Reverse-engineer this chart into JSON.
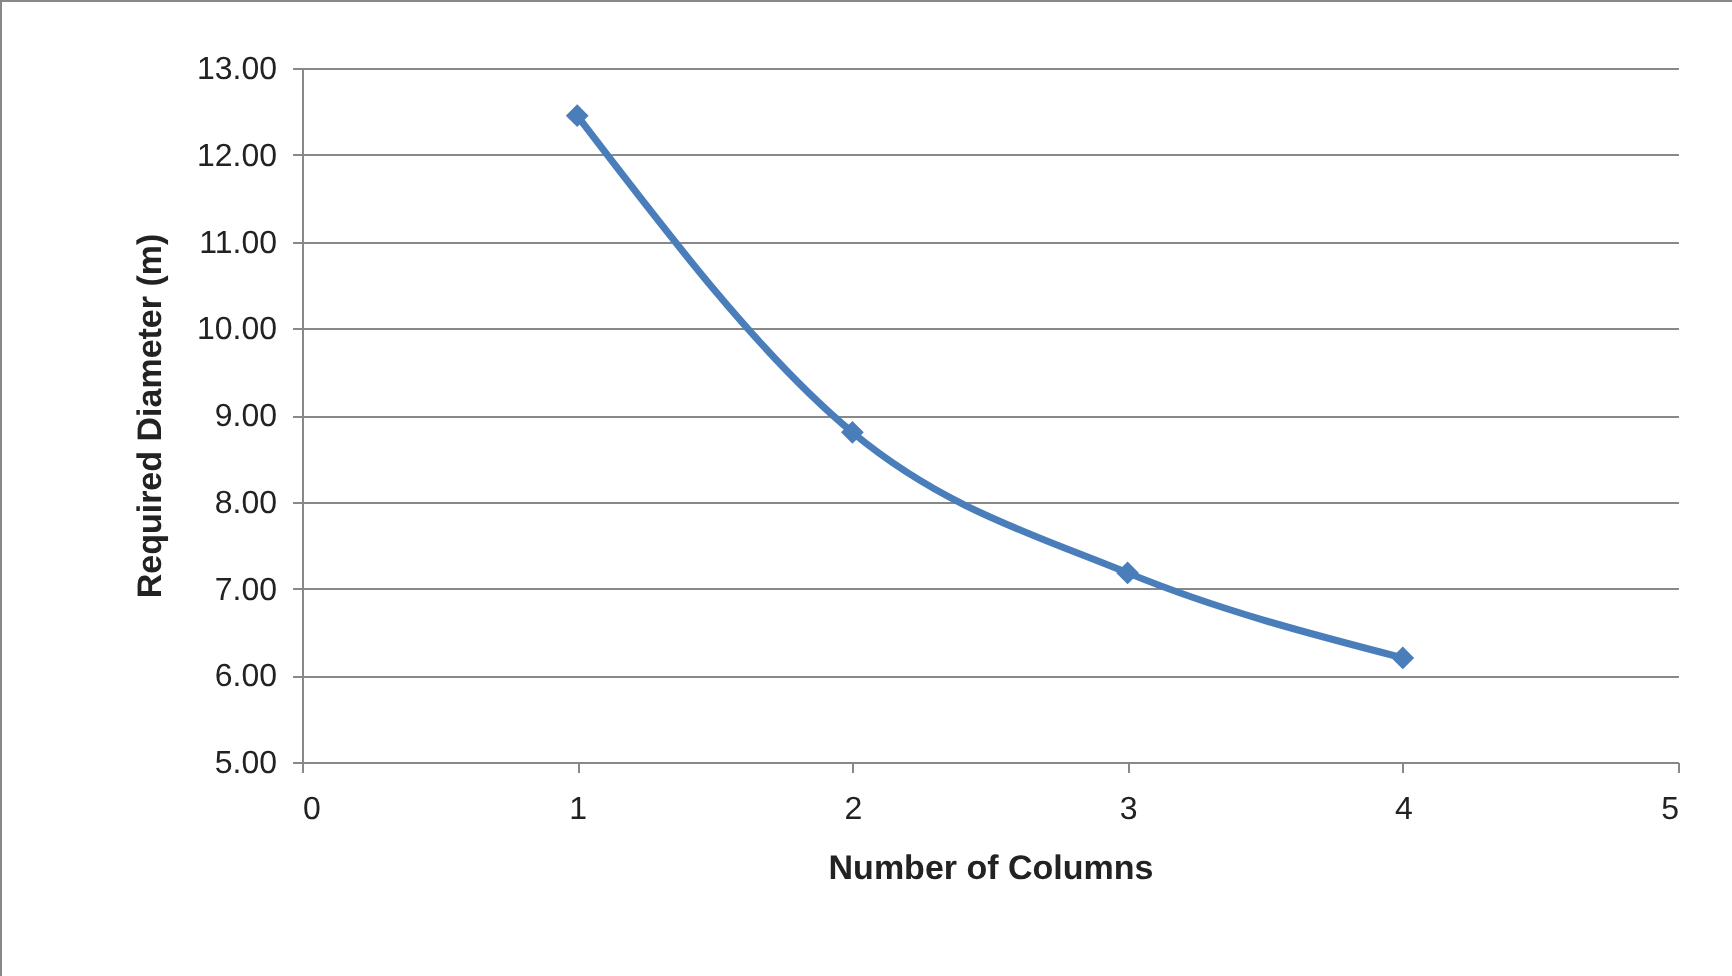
{
  "chart_data": {
    "type": "line",
    "xlabel": "Number of Columns",
    "ylabel": "Required Diameter (m)",
    "x": [
      1,
      2,
      3,
      4
    ],
    "series": [
      {
        "color": "#4a7ebb",
        "values": [
          12.45,
          8.8,
          7.18,
          6.2
        ]
      }
    ],
    "xlim": [
      0,
      5
    ],
    "xticks": [
      0,
      1,
      2,
      3,
      4,
      5
    ],
    "ylim": [
      5,
      13
    ],
    "yticks": [
      {
        "value": 5,
        "label": "5.00"
      },
      {
        "value": 6,
        "label": "6.00"
      },
      {
        "value": 7,
        "label": "7.00"
      },
      {
        "value": 8,
        "label": "8.00"
      },
      {
        "value": 9,
        "label": "9.00"
      },
      {
        "value": 10,
        "label": "10.00"
      },
      {
        "value": 11,
        "label": "11.00"
      },
      {
        "value": 12,
        "label": "12.00"
      },
      {
        "value": 13,
        "label": "13.00"
      }
    ],
    "grid": "y",
    "marker": "diamond",
    "line_style": "solid"
  }
}
